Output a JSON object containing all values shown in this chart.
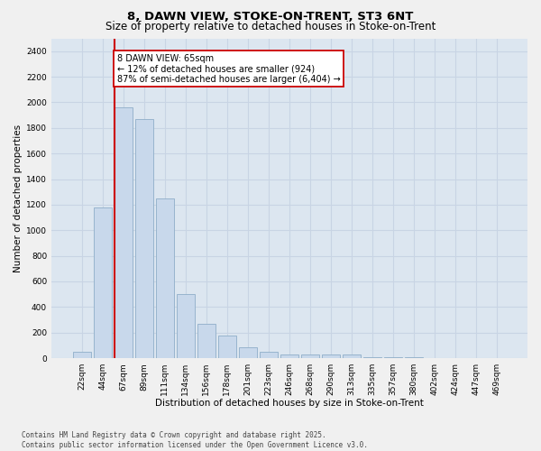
{
  "title_line1": "8, DAWN VIEW, STOKE-ON-TRENT, ST3 6NT",
  "title_line2": "Size of property relative to detached houses in Stoke-on-Trent",
  "xlabel": "Distribution of detached houses by size in Stoke-on-Trent",
  "ylabel": "Number of detached properties",
  "categories": [
    "22sqm",
    "44sqm",
    "67sqm",
    "89sqm",
    "111sqm",
    "134sqm",
    "156sqm",
    "178sqm",
    "201sqm",
    "223sqm",
    "246sqm",
    "268sqm",
    "290sqm",
    "313sqm",
    "335sqm",
    "357sqm",
    "380sqm",
    "402sqm",
    "424sqm",
    "447sqm",
    "469sqm"
  ],
  "values": [
    50,
    1175,
    1960,
    1870,
    1250,
    500,
    270,
    175,
    85,
    50,
    30,
    30,
    30,
    30,
    10,
    5,
    5,
    3,
    3,
    3,
    2
  ],
  "bar_color": "#c8d8eb",
  "bar_edge_color": "#8faec8",
  "vline_x_index": 2,
  "vline_color": "#cc0000",
  "annotation_text": "8 DAWN VIEW: 65sqm\n← 12% of detached houses are smaller (924)\n87% of semi-detached houses are larger (6,404) →",
  "annotation_box_facecolor": "#ffffff",
  "annotation_box_edgecolor": "#cc0000",
  "ylim": [
    0,
    2500
  ],
  "yticks": [
    0,
    200,
    400,
    600,
    800,
    1000,
    1200,
    1400,
    1600,
    1800,
    2000,
    2200,
    2400
  ],
  "grid_color": "#c8d4e4",
  "plot_bg_color": "#dce6f0",
  "fig_bg_color": "#f0f0f0",
  "footer_line1": "Contains HM Land Registry data © Crown copyright and database right 2025.",
  "footer_line2": "Contains public sector information licensed under the Open Government Licence v3.0.",
  "title1_fontsize": 9.5,
  "title2_fontsize": 8.5,
  "xlabel_fontsize": 7.5,
  "ylabel_fontsize": 7.5,
  "tick_fontsize": 6.5,
  "footer_fontsize": 5.5,
  "annot_fontsize": 7
}
